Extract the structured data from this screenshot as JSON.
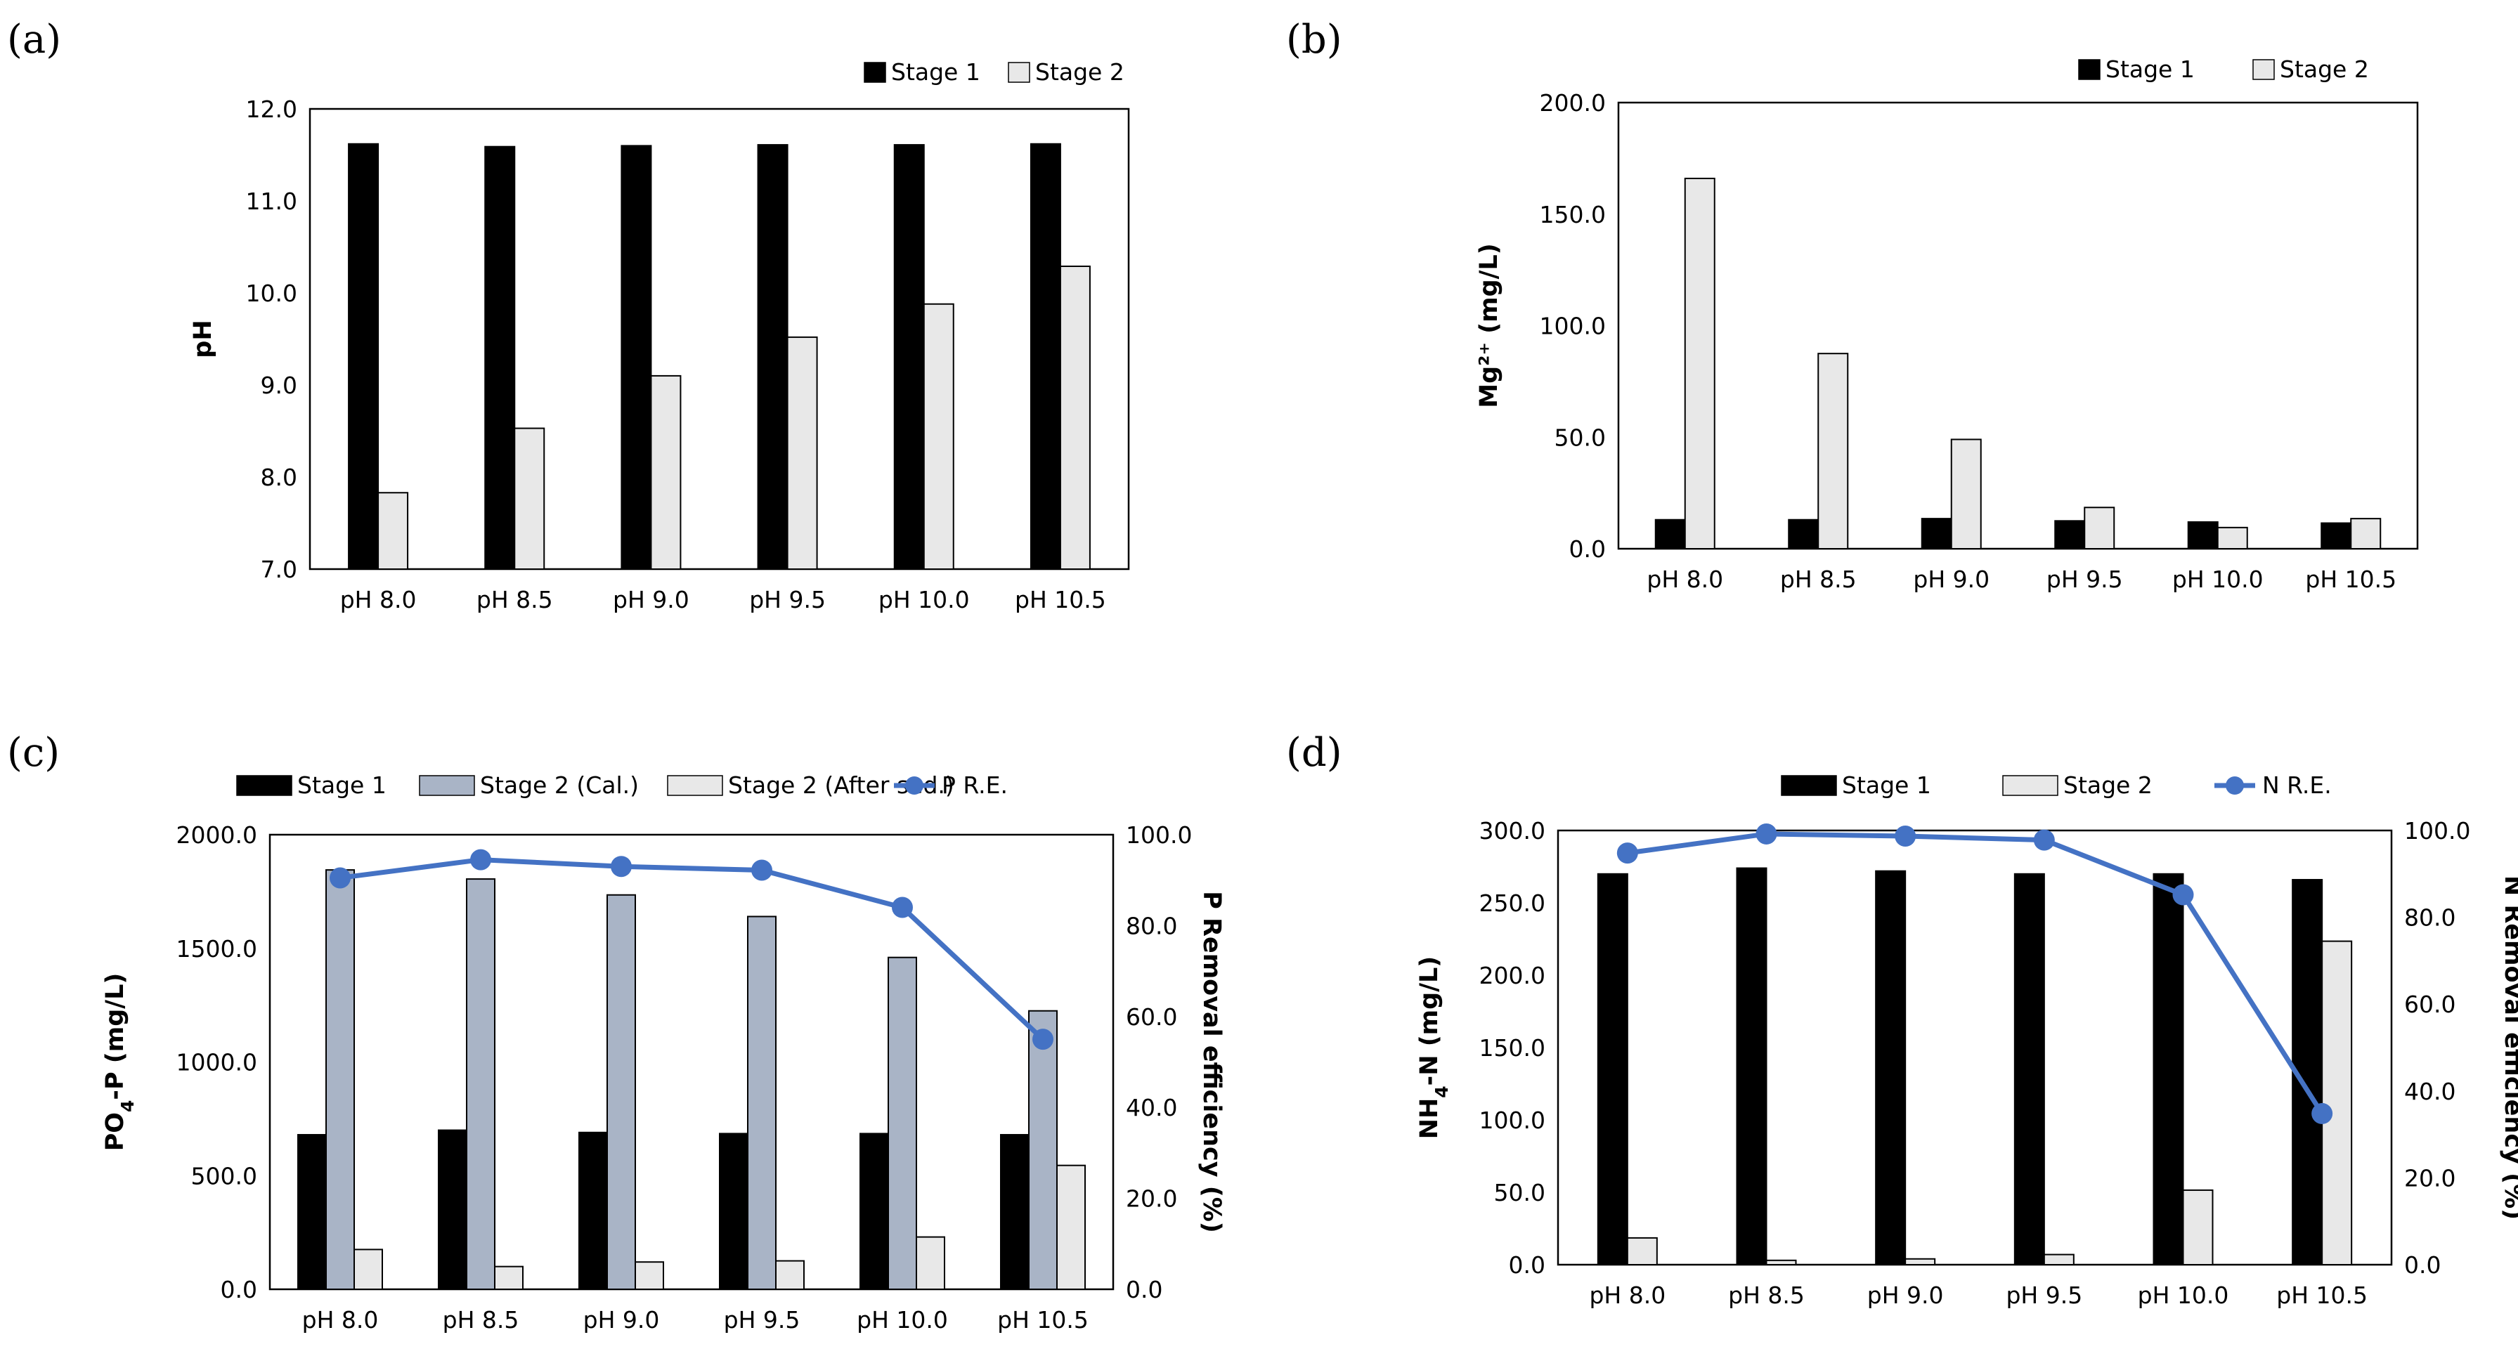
{
  "chart_data": [
    {
      "panel": "(a)",
      "type": "bar",
      "categories": [
        "pH 8.0",
        "pH 8.5",
        "pH 9.0",
        "pH 9.5",
        "pH 10.0",
        "pH 10.5"
      ],
      "series": [
        {
          "name": "Stage 1",
          "color": "#000000",
          "values": [
            11.62,
            11.59,
            11.6,
            11.61,
            11.61,
            11.62
          ]
        },
        {
          "name": "Stage 2",
          "color": "#e8e8e8",
          "values": [
            7.83,
            8.53,
            9.1,
            9.52,
            9.88,
            10.29
          ]
        }
      ],
      "ylabel": "pH",
      "ylim": [
        7.0,
        12.0
      ],
      "yticks": [
        "7.0",
        "8.0",
        "9.0",
        "10.0",
        "11.0",
        "12.0"
      ],
      "legend": "top-right"
    },
    {
      "panel": "(b)",
      "type": "bar",
      "categories": [
        "pH 8.0",
        "pH 8.5",
        "pH 9.0",
        "pH 9.5",
        "pH 10.0",
        "pH 10.5"
      ],
      "series": [
        {
          "name": "Stage 1",
          "color": "#000000",
          "values": [
            13.0,
            13.0,
            13.5,
            12.5,
            12.0,
            11.5
          ]
        },
        {
          "name": "Stage 2",
          "color": "#e8e8e8",
          "values": [
            166.0,
            87.5,
            49.0,
            18.5,
            9.5,
            13.5
          ]
        }
      ],
      "ylabel": "Mg²⁺ (mg/L)",
      "ylim": [
        0,
        200
      ],
      "yticks": [
        "0.0",
        "50.0",
        "100.0",
        "150.0",
        "200.0"
      ],
      "legend": "top-right"
    },
    {
      "panel": "(c)",
      "type": "bar",
      "categories": [
        "pH 8.0",
        "pH 8.5",
        "pH 9.0",
        "pH 9.5",
        "pH 10.0",
        "pH 10.5"
      ],
      "series": [
        {
          "name": "Stage 1",
          "color": "#000000",
          "values": [
            680,
            700,
            690,
            685,
            685,
            680
          ]
        },
        {
          "name": "Stage 2 (Cal.)",
          "color": "#a9b4c6",
          "values": [
            1845,
            1805,
            1735,
            1640,
            1460,
            1225
          ]
        },
        {
          "name": "Stage 2 (After sed.)",
          "color": "#e8e8e8",
          "values": [
            175,
            100,
            120,
            125,
            230,
            545
          ]
        },
        {
          "name": "P R.E.",
          "type": "line",
          "axis": "right",
          "color": "#4472c4",
          "values": [
            90.5,
            94.5,
            93.0,
            92.2,
            84.0,
            55.0
          ]
        }
      ],
      "ylabel": "PO4-P (mg/L)",
      "ylabel_main": "PO",
      "ylabel_sub": "4",
      "ylabel_rest": "-P (mg/L)",
      "y2label": "P Removal efficiency (%)",
      "ylim": [
        0,
        2000
      ],
      "y2lim": [
        0,
        100
      ],
      "yticks": [
        "0.0",
        "500.0",
        "1000.0",
        "1500.0",
        "2000.0"
      ],
      "y2ticks": [
        "0.0",
        "20.0",
        "40.0",
        "60.0",
        "80.0",
        "100.0"
      ],
      "legend": "top"
    },
    {
      "panel": "(d)",
      "type": "bar",
      "categories": [
        "pH 8.0",
        "pH 8.5",
        "pH 9.0",
        "pH 9.5",
        "pH 10.0",
        "pH 10.5"
      ],
      "series": [
        {
          "name": "Stage 1",
          "color": "#000000",
          "values": [
            270,
            274,
            272,
            270,
            270,
            266
          ]
        },
        {
          "name": "Stage 2",
          "color": "#e8e8e8",
          "values": [
            18.5,
            3.0,
            4.0,
            7.0,
            51.5,
            223.5
          ]
        },
        {
          "name": "N R.E.",
          "type": "line",
          "axis": "right",
          "color": "#4472c4",
          "values": [
            94.8,
            99.2,
            98.7,
            97.8,
            85.2,
            34.8
          ]
        }
      ],
      "ylabel": "NH4-N (mg/L)",
      "ylabel_main": "NH",
      "ylabel_sub": "4",
      "ylabel_rest": "-N (mg/L)",
      "y2label": "N Removal efficiency (%)",
      "ylim": [
        0,
        300
      ],
      "y2lim": [
        0,
        100
      ],
      "yticks": [
        "0.0",
        "50.0",
        "100.0",
        "150.0",
        "200.0",
        "250.0",
        "300.0"
      ],
      "y2ticks": [
        "0.0",
        "20.0",
        "40.0",
        "60.0",
        "80.0",
        "100.0"
      ],
      "legend": "top"
    }
  ]
}
